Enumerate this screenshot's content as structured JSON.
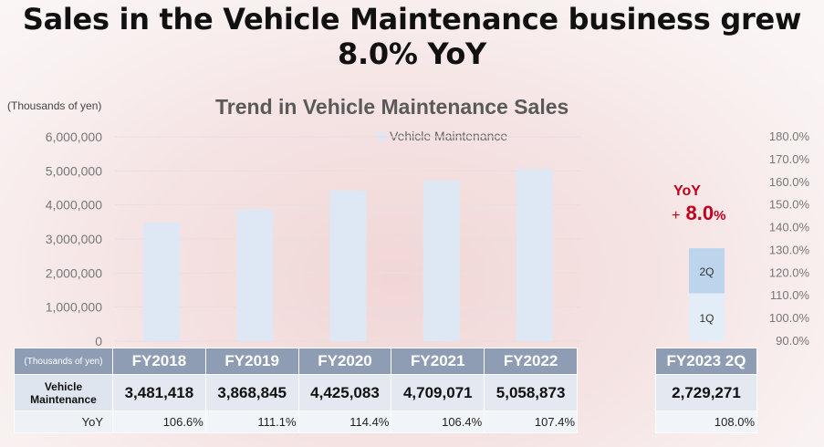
{
  "page": {
    "title": "Sales in the Vehicle Maintenance business grew 8.0% YoY",
    "unit_label": "(Thousands of yen)"
  },
  "colors": {
    "bar": "#dde8f4",
    "bar_1q": "#e3edf8",
    "bar_2q": "#bcd4ec",
    "table_header": "#8e9db4",
    "callout": "#c0001d"
  },
  "chart_data": {
    "type": "bar",
    "title": "Trend in Vehicle Maintenance Sales",
    "categories": [
      "FY2018",
      "FY2019",
      "FY2020",
      "FY2021",
      "FY2022"
    ],
    "series": [
      {
        "name": "Vehicle Maintenance",
        "values": [
          3481418,
          3868845,
          4425083,
          4709071,
          5058873
        ]
      }
    ],
    "ylim": [
      0,
      6000000
    ],
    "y_ticks": [
      "6,000,000",
      "5,000,000",
      "4,000,000",
      "3,000,000",
      "2,000,000",
      "1,000,000",
      "0"
    ],
    "y2_ticks": [
      "180.0%",
      "170.0%",
      "160.0%",
      "150.0%",
      "140.0%",
      "130.0%",
      "120.0%",
      "110.0%",
      "100.0%",
      "90.0%"
    ],
    "y2lim": [
      0.9,
      1.8
    ],
    "grid": true,
    "legend": "top",
    "fy2023_stack": {
      "total": 2729271,
      "segments": [
        {
          "label": "1Q"
        },
        {
          "label": "2Q"
        }
      ]
    }
  },
  "callout": {
    "title": "YoY",
    "plus": "+",
    "value": "8.0",
    "pct": "%"
  },
  "table": {
    "unit_header": "(Thousands of yen)",
    "years": [
      "FY2018",
      "FY2019",
      "FY2020",
      "FY2021",
      "FY2022"
    ],
    "row_label": "Vehicle Maintenance",
    "values": [
      "3,481,418",
      "3,868,845",
      "4,425,083",
      "4,709,071",
      "5,058,873"
    ],
    "yoy_label": "YoY",
    "yoy": [
      "106.6%",
      "111.1%",
      "114.4%",
      "106.4%",
      "107.4%"
    ]
  },
  "fy2023": {
    "header": "FY2023 2Q",
    "value": "2,729,271",
    "yoy": "108.0%"
  }
}
